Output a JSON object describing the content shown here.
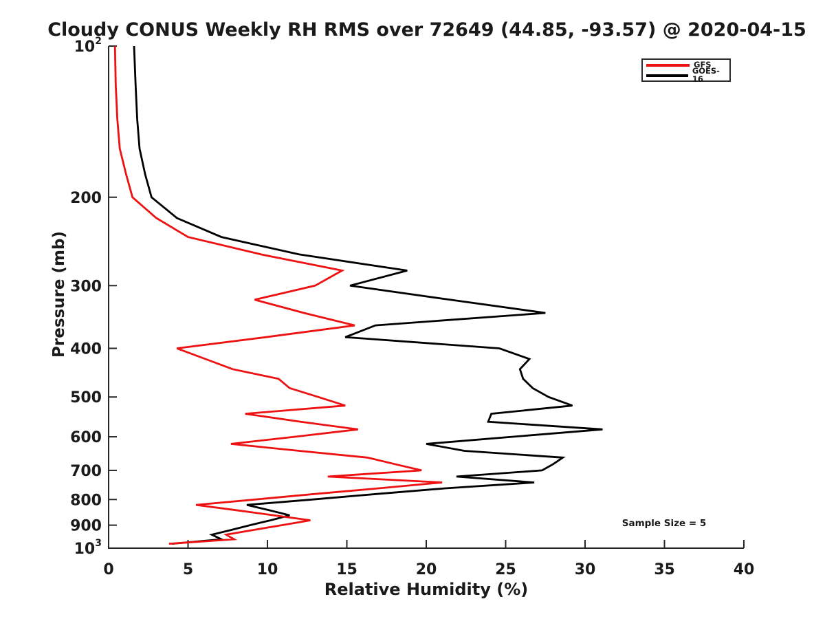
{
  "colors": {
    "gfs": "#ee1111",
    "goes16": "#000000",
    "axis": "#262626",
    "text": "#1a1a1a",
    "background": "#ffffff"
  },
  "legend": [
    {
      "label": "GFS",
      "color": "#ee1111"
    },
    {
      "label": "GOES-16",
      "color": "#000000"
    }
  ],
  "chart_data": {
    "type": "line",
    "title": "Cloudy CONUS Weekly RH RMS over 72649 (44.85, -93.57) @ 2020-04-15",
    "xlabel": "Relative Humidity (%)",
    "ylabel": "Pressure (mb)",
    "xlim": [
      0,
      40
    ],
    "ylim": [
      100,
      1000
    ],
    "yscale": "log",
    "y_axis_direction": "inverted (pressure increases downward)",
    "grid": false,
    "legend_position": "top-right",
    "xticks": [
      0,
      5,
      10,
      15,
      20,
      25,
      30,
      35,
      40
    ],
    "yticks": [
      {
        "value": 100,
        "label": "10^2"
      },
      {
        "value": 200,
        "label": "200"
      },
      {
        "value": 300,
        "label": "300"
      },
      {
        "value": 400,
        "label": "400"
      },
      {
        "value": 500,
        "label": "500"
      },
      {
        "value": 600,
        "label": "600"
      },
      {
        "value": 700,
        "label": "700"
      },
      {
        "value": 800,
        "label": "800"
      },
      {
        "value": 900,
        "label": "900"
      },
      {
        "value": 1000,
        "label": "10^3"
      }
    ],
    "annotations": [
      {
        "text": "Sample Size = 5"
      }
    ],
    "series": [
      {
        "name": "GOES-16",
        "color": "#000000",
        "points_format": "[pressure_mb, rh_rms_percent]",
        "points": [
          [
            100,
            1.6
          ],
          [
            120,
            1.7
          ],
          [
            140,
            1.8
          ],
          [
            160,
            1.95
          ],
          [
            180,
            2.3
          ],
          [
            200,
            2.7
          ],
          [
            220,
            4.3
          ],
          [
            240,
            7.1
          ],
          [
            260,
            12.0
          ],
          [
            280,
            18.8
          ],
          [
            300,
            15.2
          ],
          [
            320,
            21.5
          ],
          [
            340,
            27.5
          ],
          [
            360,
            16.8
          ],
          [
            380,
            14.9
          ],
          [
            400,
            24.6
          ],
          [
            420,
            26.5
          ],
          [
            440,
            25.9
          ],
          [
            460,
            26.1
          ],
          [
            480,
            26.7
          ],
          [
            500,
            27.7
          ],
          [
            520,
            29.2
          ],
          [
            540,
            24.1
          ],
          [
            560,
            23.9
          ],
          [
            580,
            31.1
          ],
          [
            600,
            25.4
          ],
          [
            620,
            20.0
          ],
          [
            640,
            22.4
          ],
          [
            660,
            28.6
          ],
          [
            680,
            28.0
          ],
          [
            700,
            27.3
          ],
          [
            720,
            21.9
          ],
          [
            740,
            26.8
          ],
          [
            760,
            21.2
          ],
          [
            780,
            16.9
          ],
          [
            800,
            12.8
          ],
          [
            820,
            8.7
          ],
          [
            840,
            10.1
          ],
          [
            860,
            11.4
          ],
          [
            880,
            10.2
          ],
          [
            900,
            8.9
          ],
          [
            920,
            7.7
          ],
          [
            940,
            6.5
          ],
          [
            960,
            7.1
          ],
          [
            980,
            4.0
          ]
        ]
      },
      {
        "name": "GFS",
        "color": "#ee1111",
        "points_format": "[pressure_mb, rh_rms_percent]",
        "points": [
          [
            100,
            0.4
          ],
          [
            120,
            0.45
          ],
          [
            140,
            0.55
          ],
          [
            160,
            0.7
          ],
          [
            180,
            1.1
          ],
          [
            200,
            1.5
          ],
          [
            220,
            3.0
          ],
          [
            240,
            5.0
          ],
          [
            260,
            9.6
          ],
          [
            280,
            14.7
          ],
          [
            300,
            13.0
          ],
          [
            320,
            9.2
          ],
          [
            340,
            12.3
          ],
          [
            360,
            15.5
          ],
          [
            380,
            9.9
          ],
          [
            400,
            4.3
          ],
          [
            420,
            6.1
          ],
          [
            440,
            7.8
          ],
          [
            460,
            10.7
          ],
          [
            480,
            11.4
          ],
          [
            500,
            13.2
          ],
          [
            520,
            14.9
          ],
          [
            540,
            8.6
          ],
          [
            560,
            12.1
          ],
          [
            580,
            15.7
          ],
          [
            600,
            11.7
          ],
          [
            620,
            7.7
          ],
          [
            640,
            12.0
          ],
          [
            660,
            16.3
          ],
          [
            680,
            18.0
          ],
          [
            700,
            19.7
          ],
          [
            720,
            13.8
          ],
          [
            740,
            21.0
          ],
          [
            760,
            17.0
          ],
          [
            780,
            13.0
          ],
          [
            800,
            9.2
          ],
          [
            820,
            5.5
          ],
          [
            840,
            8.0
          ],
          [
            860,
            10.4
          ],
          [
            880,
            12.7
          ],
          [
            900,
            10.9
          ],
          [
            920,
            9.1
          ],
          [
            940,
            7.4
          ],
          [
            960,
            7.9
          ],
          [
            980,
            3.8
          ]
        ]
      }
    ]
  }
}
